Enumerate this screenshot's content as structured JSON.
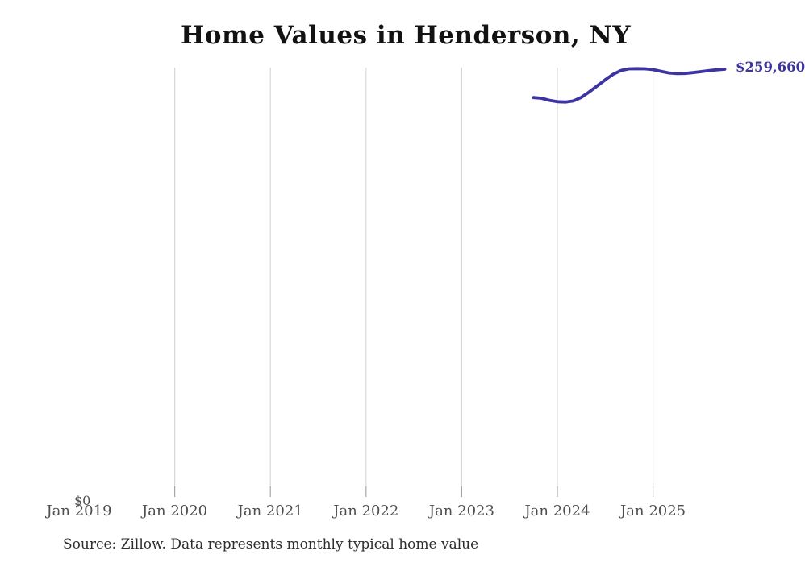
{
  "chart_data": {
    "type": "line",
    "title": "Home Values in Henderson, NY",
    "x_ticks": [
      "Jan 2019",
      "Jan 2020",
      "Jan 2021",
      "Jan 2022",
      "Jan 2023",
      "Jan 2024",
      "Jan 2025"
    ],
    "y_zero_label": "$0",
    "latest_value_label": "$259,660",
    "source_note": "Source: Zillow. Data represents monthly typical home value",
    "ylim": [
      0,
      260700
    ],
    "grid": "vertical-only",
    "legend": "none",
    "colors": {
      "line": "#3b34a1",
      "value_label": "#3b34a1",
      "gridline": "#d8d8d8",
      "tick": "#a6a6a6",
      "axis_text": "#4f4f4f",
      "title_text": "#121212",
      "source_text": "#2e2e2e"
    },
    "series": [
      {
        "name": "Monthly typical home value",
        "x": [
          "Oct 2023",
          "Nov 2023",
          "Dec 2023",
          "Jan 2024",
          "Feb 2024",
          "Mar 2024",
          "Apr 2024",
          "May 2024",
          "Jun 2024",
          "Jul 2024",
          "Aug 2024",
          "Sep 2024",
          "Oct 2024",
          "Nov 2024",
          "Dec 2024",
          "Jan 2025",
          "Feb 2025",
          "Mar 2025",
          "Apr 2025",
          "May 2025",
          "Jun 2025",
          "Jul 2025",
          "Aug 2025",
          "Sep 2025",
          "Oct 2025"
        ],
        "values": [
          242400,
          242000,
          240700,
          239900,
          239700,
          240300,
          242500,
          245800,
          249500,
          253200,
          256600,
          258900,
          259900,
          260000,
          259900,
          259400,
          258400,
          257400,
          257000,
          257100,
          257600,
          258200,
          258800,
          259300,
          259660
        ]
      }
    ]
  }
}
